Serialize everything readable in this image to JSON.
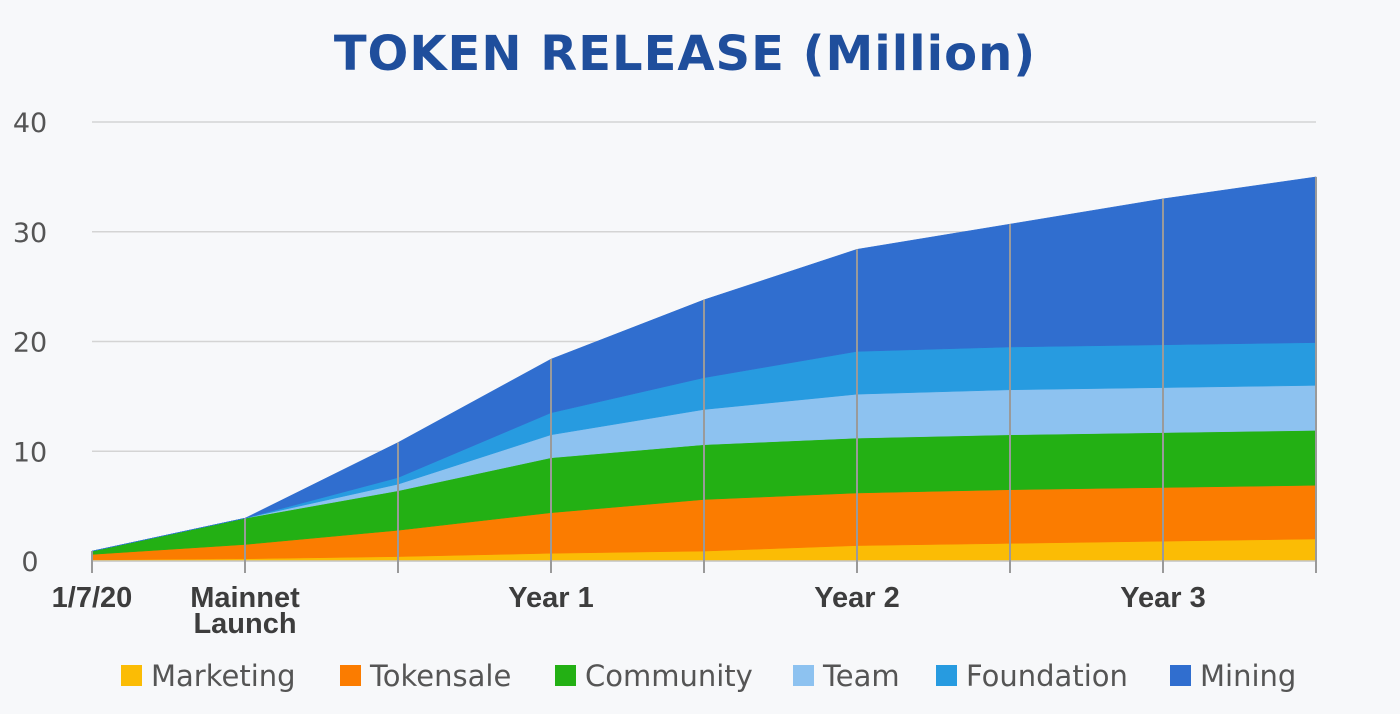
{
  "chart_data": {
    "type": "area",
    "stacked": true,
    "title": "TOKEN RELEASE (Million)",
    "xlabel": "",
    "ylabel": "",
    "ylim": [
      0,
      40
    ],
    "yticks": [
      0,
      10,
      20,
      30,
      40
    ],
    "grid": "horizontal",
    "legend_position": "bottom",
    "x_tick_labels": [
      "1/7/20",
      "Mainnet Launch",
      "",
      "Year 1",
      "",
      "Year 2",
      "",
      "Year 3",
      ""
    ],
    "series": [
      {
        "name": "Marketing",
        "color": "#fbbc05",
        "values": [
          0.1,
          0.2,
          0.4,
          0.7,
          0.9,
          1.4,
          1.6,
          1.8,
          2.0
        ]
      },
      {
        "name": "Tokensale",
        "color": "#fb7c00",
        "values": [
          0.5,
          1.3,
          2.4,
          3.7,
          4.7,
          4.8,
          4.9,
          4.9,
          4.9
        ]
      },
      {
        "name": "Community",
        "color": "#23b014",
        "values": [
          0.3,
          2.4,
          3.6,
          5.0,
          5.0,
          5.0,
          5.0,
          5.0,
          5.0
        ]
      },
      {
        "name": "Team",
        "color": "#8dc2f0",
        "values": [
          0.0,
          0.0,
          0.6,
          2.1,
          3.2,
          4.0,
          4.1,
          4.1,
          4.1
        ]
      },
      {
        "name": "Foundation",
        "color": "#279be0",
        "values": [
          0.0,
          0.0,
          0.6,
          2.0,
          2.9,
          3.9,
          3.9,
          3.9,
          3.9
        ]
      },
      {
        "name": "Mining",
        "color": "#306ecf",
        "values": [
          0.0,
          0.0,
          3.2,
          4.9,
          7.1,
          9.3,
          11.2,
          13.3,
          15.1
        ]
      }
    ]
  }
}
